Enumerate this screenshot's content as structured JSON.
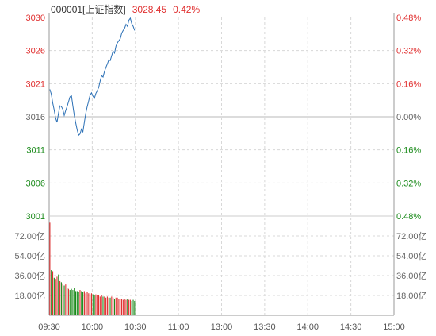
{
  "header": {
    "code_label": "000001[上证指数]",
    "price": "3028.45",
    "pct": "0.42%"
  },
  "colors": {
    "up": "#e03030",
    "down": "#1a8a1a",
    "neutral": "#666666",
    "price_line": "#2a6fb5",
    "grid": "#d8d8d8"
  },
  "chart_data": {
    "type": "line",
    "price_axis": {
      "ticks": [
        "3030",
        "3026",
        "3021",
        "3016",
        "3011",
        "3006",
        "3001"
      ],
      "pct_ticks": [
        "0.48%",
        "0.32%",
        "0.16%",
        "0.00%",
        "0.16%",
        "0.32%",
        "0.48%"
      ],
      "ylim": [
        3001.5,
        3030.5
      ],
      "reference_close": 3016.0
    },
    "volume_axis": {
      "ticks": [
        "72.00亿",
        "54.00亿",
        "36.00亿",
        "18.00亿"
      ],
      "tick_values": [
        72,
        54,
        36,
        18
      ],
      "ylim": [
        0,
        90
      ],
      "unit": "亿"
    },
    "x_ticks": [
      "09:30",
      "10:00",
      "10:30",
      "11:00",
      "13:00",
      "13:30",
      "14:00",
      "14:30",
      "15:00"
    ],
    "total_minutes": 240,
    "price_series": [
      3020,
      3019.3,
      3018,
      3017,
      3015.8,
      3015.2,
      3016.5,
      3017.6,
      3017.5,
      3017.1,
      3016.2,
      3016.9,
      3017.5,
      3018.2,
      3018.9,
      3019.1,
      3017.6,
      3016.2,
      3015.1,
      3014.1,
      3013.3,
      3013.5,
      3014.2,
      3013.8,
      3015.2,
      3016.5,
      3017.5,
      3018.3,
      3019.2,
      3019.5,
      3019.0,
      3018.7,
      3019.4,
      3019.8,
      3020.3,
      3021.2,
      3022.0,
      3021.8,
      3022.6,
      3023.2,
      3023.7,
      3024.3,
      3024.2,
      3024.9,
      3025.6,
      3025.3,
      3026.3,
      3026.8,
      3027.1,
      3027.4,
      3028.2,
      3028.6,
      3028.9,
      3029.5,
      3029.2,
      3030.1,
      3030.4,
      3029.6,
      3029.2,
      3028.6
    ],
    "volume_series": [
      84,
      41,
      40,
      34,
      33,
      35,
      37,
      31,
      30,
      29,
      27,
      28,
      25,
      24,
      23,
      24,
      23,
      25,
      22,
      22,
      21,
      23,
      22,
      21,
      22,
      20,
      21,
      20,
      19,
      20,
      19,
      18,
      19,
      18,
      18,
      17,
      18,
      17,
      17,
      16,
      17,
      16,
      16,
      17,
      16,
      15,
      16,
      16,
      15,
      15,
      15,
      14,
      15,
      14,
      15,
      14,
      14,
      13,
      14,
      13
    ],
    "volume_colors": [
      "up",
      "down",
      "up",
      "down",
      "up",
      "up",
      "down",
      "up",
      "down",
      "up",
      "down",
      "up",
      "down",
      "up",
      "down",
      "down",
      "down",
      "down",
      "down",
      "down",
      "down",
      "up",
      "down",
      "down",
      "up",
      "up",
      "up",
      "up",
      "up",
      "up",
      "down",
      "down",
      "up",
      "up",
      "up",
      "up",
      "up",
      "down",
      "up",
      "up",
      "up",
      "up",
      "down",
      "up",
      "up",
      "down",
      "up",
      "up",
      "up",
      "up",
      "up",
      "up",
      "up",
      "up",
      "down",
      "up",
      "up",
      "down",
      "down",
      "down"
    ]
  }
}
